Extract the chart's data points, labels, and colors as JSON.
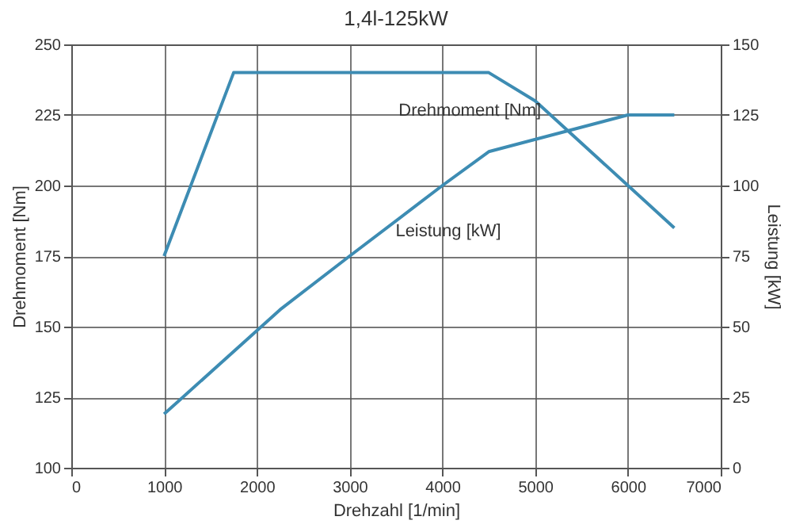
{
  "chart_data": {
    "type": "line",
    "title": "1,4l-125kW",
    "xlabel": "Drehzahl [1/min]",
    "ylabel": "Drehmoment [Nm]",
    "y2label": "Leistung [kW]",
    "series": [
      {
        "name": "Drehmoment [Nm]",
        "color": "#3d8cb3",
        "x": [
          1000,
          1750,
          4500,
          5000,
          6000,
          6500
        ],
        "values": [
          175,
          240,
          240,
          230,
          200,
          185
        ]
      },
      {
        "name": "Leistung [kW]",
        "color": "#3d8cb3",
        "axis": "y2",
        "x": [
          1000,
          2250,
          3000,
          4000,
          4500,
          6000,
          6500
        ],
        "values": [
          19,
          56,
          75,
          100,
          112,
          125,
          125
        ]
      }
    ],
    "xlim": [
      0,
      7000
    ],
    "xticks": [
      0,
      1000,
      2000,
      3000,
      4000,
      5000,
      6000,
      7000
    ],
    "ylim": [
      100,
      250
    ],
    "yticks": [
      100,
      125,
      150,
      175,
      200,
      225,
      250
    ],
    "y2lim": [
      0,
      150
    ],
    "y2ticks": [
      0,
      25,
      50,
      75,
      100,
      125,
      150
    ],
    "grid": true,
    "marker": "none",
    "line_style": "solid"
  }
}
